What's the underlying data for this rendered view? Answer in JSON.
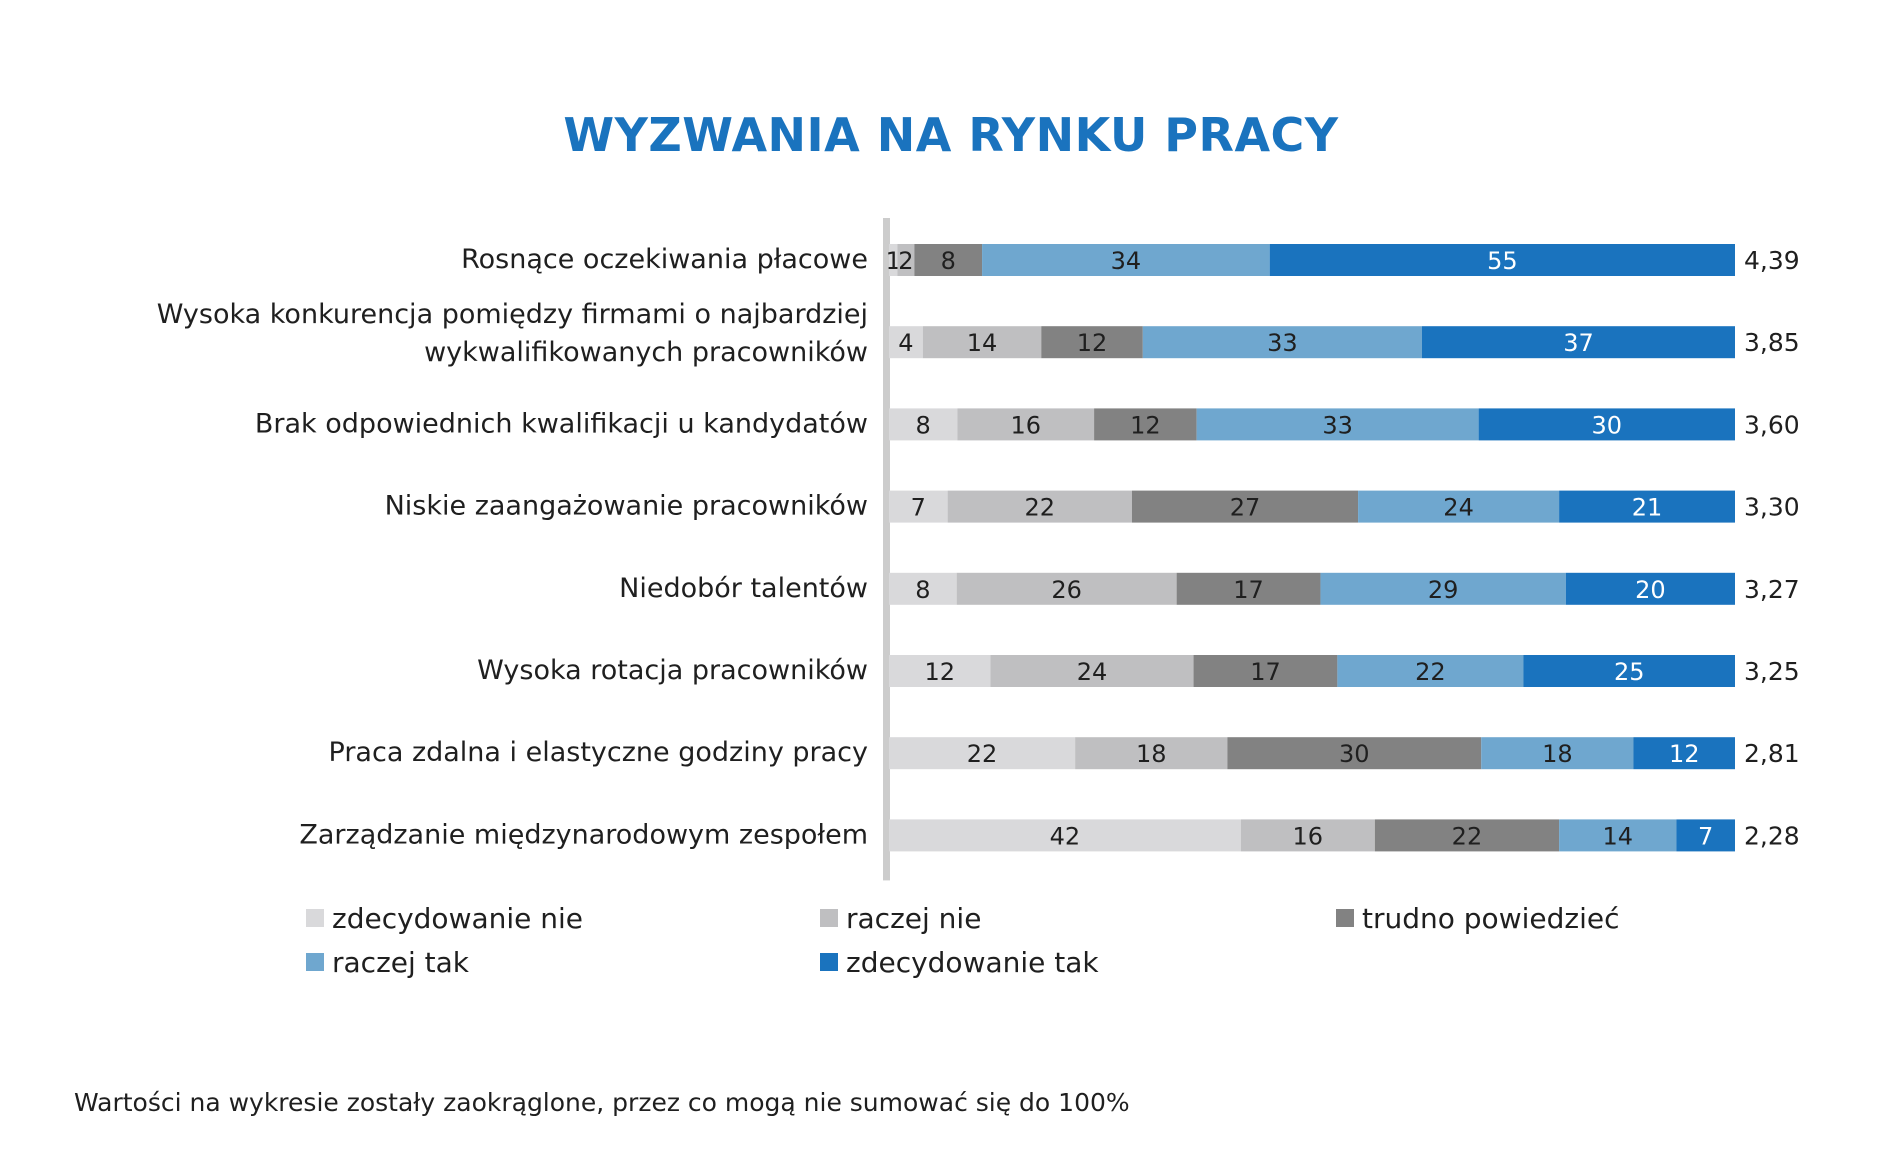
{
  "chart_data": {
    "type": "bar",
    "orientation": "horizontal",
    "stacked": true,
    "title": "WYZWANIA NA RYNKU PRACY",
    "categories": [
      "Rosnące oczekiwania płacowe",
      "Wysoka konkurencja pomiędzy firmami o najbardziej wykwalifikowanych pracowników",
      "Brak odpowiednich kwalifikacji u kandydatów",
      "Niskie zaangażowanie pracowników",
      "Niedobór talentów",
      "Wysoka rotacja pracowników",
      "Praca zdalna i elastyczne godziny pracy",
      "Zarządzanie międzynarodowym zespołem"
    ],
    "category_label_lines": [
      [
        "Rosnące oczekiwania płacowe"
      ],
      [
        "Wysoka konkurencja pomiędzy firmami o najbardziej",
        "wykwalifikowanych pracowników"
      ],
      [
        "Brak odpowiednich kwalifikacji u kandydatów"
      ],
      [
        "Niskie zaangażowanie pracowników"
      ],
      [
        "Niedobór talentów"
      ],
      [
        "Wysoka rotacja pracowników"
      ],
      [
        "Praca zdalna i elastyczne godziny pracy"
      ],
      [
        "Zarządzanie międzynarodowym zespołem"
      ]
    ],
    "series": [
      {
        "name": "zdecydowanie nie",
        "color": "#d9d9db",
        "values": [
          1,
          4,
          8,
          7,
          8,
          12,
          22,
          42
        ]
      },
      {
        "name": "raczej nie",
        "color": "#bfbfc1",
        "values": [
          2,
          14,
          16,
          22,
          26,
          24,
          18,
          16
        ]
      },
      {
        "name": "trudno powiedzieć",
        "color": "#828282",
        "values": [
          8,
          12,
          12,
          27,
          17,
          17,
          30,
          22
        ]
      },
      {
        "name": "raczej tak",
        "color": "#6fa7cf",
        "values": [
          34,
          33,
          33,
          24,
          29,
          22,
          18,
          14
        ]
      },
      {
        "name": "zdecydowanie tak",
        "color": "#1a73be",
        "values": [
          55,
          37,
          30,
          21,
          20,
          25,
          12,
          7
        ]
      }
    ],
    "averages": [
      "4,39",
      "3,85",
      "3,60",
      "3,30",
      "3,27",
      "3,25",
      "2,81",
      "2,28"
    ],
    "legend_order": [
      0,
      1,
      2,
      3,
      4
    ],
    "legend_position": "bottom",
    "grid": false
  },
  "note": "Wartości na wykresie zostały zaokrąglone, przez co mogą nie sumować się do 100%"
}
